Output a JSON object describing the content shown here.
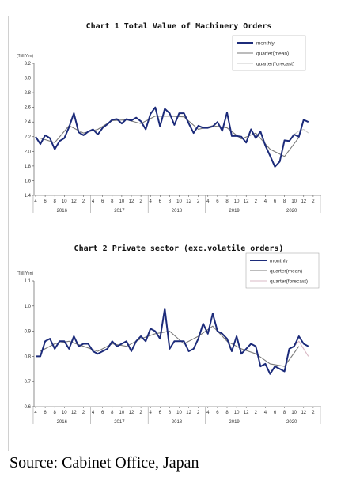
{
  "source": "Source: Cabinet Office, Japan",
  "chart_data": [
    {
      "type": "line",
      "title": "Chart 1 Total Value of Machinery Orders",
      "unit": "(Trill.Yen)",
      "ylim": [
        1.4,
        3.2
      ],
      "yticks": [
        "1.4",
        "1.6",
        "1.8",
        "2.0",
        "2.2",
        "2.4",
        "2.6",
        "2.8",
        "3.0",
        "3.2"
      ],
      "month_ticks": [
        "4",
        "6",
        "8",
        "10",
        "12",
        "2",
        "4",
        "6",
        "8",
        "10",
        "12",
        "2",
        "4",
        "6",
        "8",
        "10",
        "12",
        "2",
        "4",
        "6",
        "8",
        "10",
        "12",
        "2",
        "4",
        "6",
        "8",
        "10",
        "12",
        "2"
      ],
      "years": [
        "2016",
        "2017",
        "2018",
        "2019",
        "2020"
      ],
      "grid": false,
      "legend": "top-right",
      "series": [
        {
          "name": "monthly",
          "color": "#1c2b7a",
          "values": [
            2.2,
            2.1,
            2.22,
            2.18,
            2.03,
            2.14,
            2.18,
            2.33,
            2.52,
            2.26,
            2.22,
            2.27,
            2.3,
            2.23,
            2.32,
            2.37,
            2.43,
            2.44,
            2.38,
            2.44,
            2.42,
            2.46,
            2.41,
            2.3,
            2.51,
            2.6,
            2.34,
            2.58,
            2.52,
            2.36,
            2.52,
            2.52,
            2.38,
            2.25,
            2.35,
            2.32,
            2.32,
            2.34,
            2.4,
            2.28,
            2.53,
            2.21,
            2.21,
            2.2,
            2.12,
            2.3,
            2.18,
            2.27,
            2.08,
            1.94,
            1.79,
            1.86,
            2.15,
            2.14,
            2.23,
            2.2,
            2.43,
            2.4
          ]
        },
        {
          "name": "quarter(mean)",
          "color": "#7a7a7a",
          "values": [
            null,
            2.18,
            null,
            null,
            2.12,
            null,
            null,
            2.35,
            null,
            null,
            2.25,
            null,
            null,
            2.3,
            null,
            null,
            2.42,
            null,
            null,
            2.43,
            null,
            null,
            2.38,
            null,
            null,
            2.48,
            null,
            null,
            2.48,
            null,
            null,
            2.47,
            null,
            null,
            2.3,
            null,
            null,
            2.35,
            null,
            null,
            2.32,
            null,
            null,
            2.17,
            null,
            null,
            2.25,
            null,
            null,
            2.03,
            null,
            null,
            1.93,
            null,
            null,
            2.19,
            null,
            null
          ]
        },
        {
          "name": "quarter(forecast)",
          "color": "#c8c8c8",
          "values": [
            null,
            null,
            null,
            null,
            null,
            null,
            null,
            null,
            null,
            null,
            null,
            null,
            null,
            null,
            null,
            null,
            null,
            null,
            null,
            null,
            null,
            null,
            null,
            null,
            null,
            null,
            null,
            null,
            null,
            null,
            null,
            null,
            null,
            null,
            null,
            null,
            null,
            null,
            null,
            null,
            null,
            null,
            null,
            null,
            null,
            null,
            null,
            null,
            null,
            null,
            null,
            null,
            null,
            null,
            2.23,
            2.28,
            2.3,
            2.25
          ]
        }
      ]
    },
    {
      "type": "line",
      "title": "Chart 2 Private sector (exc.volatile orders)",
      "unit": "(Trill.Yen)",
      "ylim": [
        0.6,
        1.1
      ],
      "yticks": [
        "0.6",
        "0.7",
        "0.8",
        "0.9",
        "1.0",
        "1.1"
      ],
      "month_ticks": [
        "4",
        "6",
        "8",
        "10",
        "12",
        "2",
        "4",
        "6",
        "8",
        "10",
        "12",
        "2",
        "4",
        "6",
        "8",
        "10",
        "12",
        "2",
        "4",
        "6",
        "8",
        "10",
        "12",
        "2",
        "4",
        "6",
        "8",
        "10",
        "12",
        "2"
      ],
      "years": [
        "2016",
        "2017",
        "2018",
        "2019",
        "2020"
      ],
      "grid": false,
      "legend": "top-right",
      "series": [
        {
          "name": "monthly",
          "color": "#1c2b7a",
          "values": [
            0.8,
            0.8,
            0.86,
            0.87,
            0.83,
            0.86,
            0.86,
            0.83,
            0.88,
            0.84,
            0.85,
            0.85,
            0.82,
            0.81,
            0.82,
            0.83,
            0.86,
            0.84,
            0.85,
            0.86,
            0.82,
            0.86,
            0.88,
            0.86,
            0.91,
            0.9,
            0.87,
            0.99,
            0.83,
            0.86,
            0.86,
            0.86,
            0.82,
            0.83,
            0.87,
            0.93,
            0.89,
            0.97,
            0.9,
            0.89,
            0.87,
            0.82,
            0.88,
            0.81,
            0.83,
            0.85,
            0.84,
            0.76,
            0.77,
            0.73,
            0.76,
            0.75,
            0.74,
            0.83,
            0.84,
            0.88,
            0.85,
            0.84
          ]
        },
        {
          "name": "quarter(mean)",
          "color": "#7a7a7a",
          "values": [
            null,
            0.82,
            null,
            null,
            0.85,
            null,
            null,
            0.86,
            null,
            null,
            0.84,
            null,
            null,
            0.82,
            null,
            null,
            0.85,
            null,
            null,
            0.84,
            null,
            null,
            0.87,
            null,
            null,
            0.89,
            null,
            null,
            0.9,
            null,
            null,
            0.85,
            null,
            null,
            0.88,
            null,
            null,
            0.92,
            null,
            null,
            0.86,
            null,
            null,
            0.83,
            null,
            null,
            0.81,
            null,
            null,
            0.77,
            null,
            null,
            0.76,
            null,
            null,
            0.84,
            null,
            null
          ]
        },
        {
          "name": "quarter(forecast)",
          "color": "#d9b8c4",
          "values": [
            null,
            null,
            null,
            null,
            null,
            null,
            null,
            null,
            null,
            null,
            null,
            null,
            null,
            null,
            null,
            null,
            null,
            null,
            null,
            null,
            null,
            null,
            null,
            null,
            null,
            null,
            null,
            null,
            null,
            null,
            null,
            null,
            null,
            null,
            null,
            null,
            null,
            null,
            null,
            null,
            null,
            null,
            null,
            null,
            null,
            null,
            null,
            null,
            null,
            null,
            null,
            null,
            null,
            null,
            0.84,
            0.86,
            0.83,
            0.8
          ]
        }
      ]
    }
  ]
}
